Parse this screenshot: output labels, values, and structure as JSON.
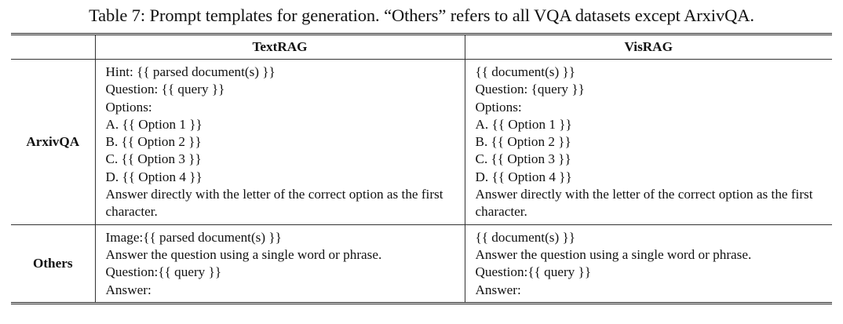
{
  "caption": "Table 7: Prompt templates for generation. “Others” refers to all VQA datasets except ArxivQA.",
  "table": {
    "headers": [
      "",
      "TextRAG",
      "VisRAG"
    ],
    "rows": [
      {
        "label": "ArxivQA",
        "textrag": [
          "Hint: {{ parsed document(s) }}",
          "Question: {{ query }}",
          "Options:",
          "A. {{ Option 1 }}",
          "B. {{ Option 2 }}",
          "C. {{ Option 3 }}",
          "D. {{ Option 4 }}",
          "Answer directly with the letter of the correct option as the first character."
        ],
        "visrag": [
          "{{ document(s) }}",
          "Question: {query }}",
          "Options:",
          "A. {{ Option 1 }}",
          "B. {{ Option 2 }}",
          "C. {{ Option 3 }}",
          "D. {{ Option 4 }}",
          "Answer directly with the letter of the correct option as the first character."
        ]
      },
      {
        "label": "Others",
        "textrag": [
          "Image:{{ parsed document(s) }}",
          "Answer the question using a single word or phrase.",
          "Question:{{ query }}",
          "Answer:"
        ],
        "visrag": [
          "{{ document(s) }}",
          "Answer the question using a single word or phrase.",
          "Question:{{ query }}",
          "Answer:"
        ]
      }
    ]
  }
}
